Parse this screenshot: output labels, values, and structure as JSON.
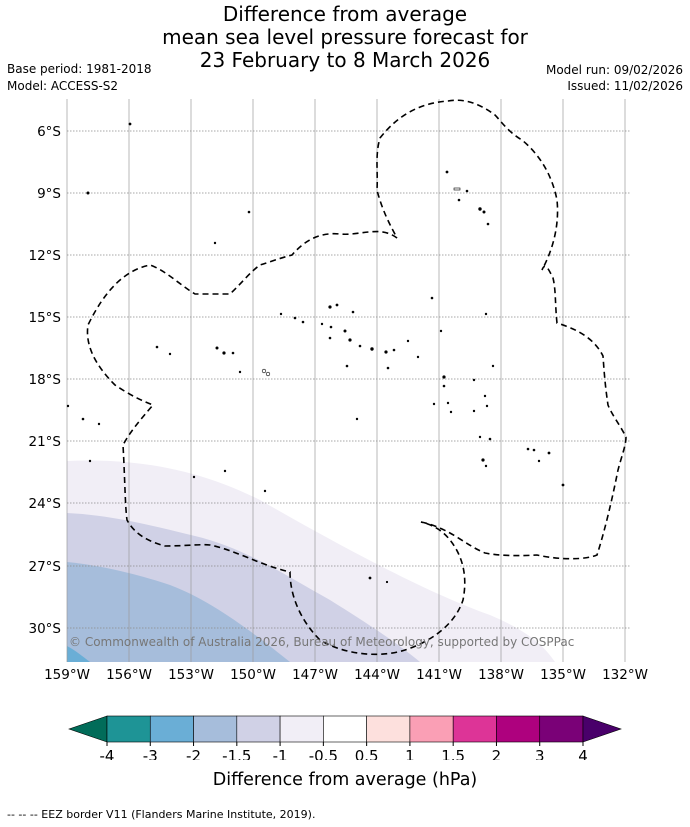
{
  "title": {
    "line1": "Difference from average",
    "line2": "mean sea level pressure forecast for",
    "line3": "23 February to 8 March 2026"
  },
  "meta": {
    "base_period": "Base period: 1981-2018",
    "model": "Model: ACCESS-S2",
    "model_run": "Model run: 09/02/2026",
    "issued": "Issued: 11/02/2026"
  },
  "axes": {
    "lat_labels": [
      "6°S",
      "9°S",
      "12°S",
      "15°S",
      "18°S",
      "21°S",
      "24°S",
      "27°S",
      "30°S"
    ],
    "lon_labels": [
      "159°W",
      "156°W",
      "153°W",
      "150°W",
      "147°W",
      "144°W",
      "141°W",
      "138°W",
      "135°W",
      "132°W"
    ]
  },
  "copyright": "© Commonwealth of Australia 2026, Bureau of Meteorology, supported by COSPPac",
  "colorbar": {
    "ticks": [
      "-4",
      "-3",
      "-2",
      "-1.5",
      "-1",
      "-0.5",
      "0.5",
      "1",
      "1.5",
      "2",
      "3",
      "4"
    ],
    "colors": [
      "#1e9496",
      "#6aaed6",
      "#a6bddb",
      "#d0d1e6",
      "#f1eef6",
      "#ffffff",
      "#fde0dd",
      "#fa9fb5",
      "#dd3497",
      "#ae017e",
      "#7a0177"
    ],
    "extend_low_color": "#016c59",
    "extend_high_color": "#49006a",
    "label": "Difference from average (hPa)"
  },
  "footer": "--  --  -- EEZ border V11 (Flanders Marine Institute, 2019)."
}
